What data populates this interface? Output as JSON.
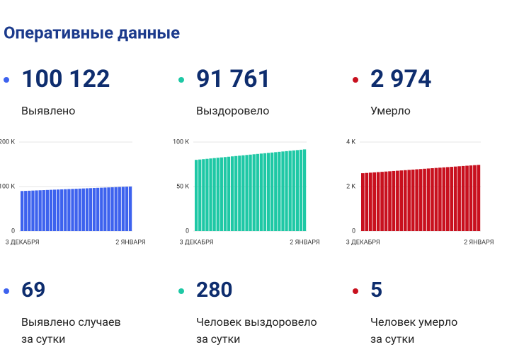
{
  "title": "Оперативные данные",
  "cards": [
    {
      "value": "100 122",
      "label": "Выявлено"
    },
    {
      "value": "91 761",
      "label": "Выздоровело"
    },
    {
      "value": "2 974",
      "label": "Умерло"
    }
  ],
  "chart_data": [
    {
      "type": "bar",
      "categories": [
        "3 ДЕКАБРЯ",
        null,
        null,
        null,
        null,
        null,
        null,
        null,
        null,
        null,
        null,
        null,
        null,
        null,
        null,
        null,
        null,
        null,
        null,
        null,
        null,
        null,
        null,
        null,
        null,
        null,
        null,
        null,
        null,
        null,
        "2 ЯНВАРЯ"
      ],
      "values": [
        90000,
        90337,
        90675,
        91012,
        91350,
        91687,
        92024,
        92362,
        92699,
        93037,
        93374,
        93711,
        94049,
        94386,
        94724,
        95061,
        95398,
        95736,
        96073,
        96411,
        96748,
        97085,
        97423,
        97760,
        98098,
        98435,
        98772,
        99110,
        99447,
        99785,
        100122
      ],
      "color": "#3d62ee",
      "ylim": [
        0,
        200000
      ],
      "yticks": [
        0,
        {
          "value": 100000,
          "label": "100 K"
        },
        {
          "value": 200000,
          "label": "200 K"
        }
      ],
      "grid": true
    },
    {
      "type": "bar",
      "categories": [
        "3 ДЕКАБРЯ",
        null,
        null,
        null,
        null,
        null,
        null,
        null,
        null,
        null,
        null,
        null,
        null,
        null,
        null,
        null,
        null,
        null,
        null,
        null,
        null,
        null,
        null,
        null,
        null,
        null,
        null,
        null,
        null,
        null,
        "2 ЯНВАРЯ"
      ],
      "values": [
        80000,
        80392,
        80784,
        81176,
        81568,
        81960,
        82352,
        82744,
        83136,
        83528,
        83920,
        84312,
        84704,
        85096,
        85488,
        85880,
        86272,
        86664,
        87056,
        87448,
        87840,
        88232,
        88624,
        89016,
        89408,
        89800,
        90192,
        90584,
        90976,
        91368,
        91761
      ],
      "color": "#1ec8a5",
      "ylim": [
        0,
        100000
      ],
      "yticks": [
        0,
        {
          "value": 50000,
          "label": "50 K"
        },
        {
          "value": 100000,
          "label": "100 K"
        }
      ],
      "grid": true
    },
    {
      "type": "bar",
      "categories": [
        "3 ДЕКАБРЯ",
        null,
        null,
        null,
        null,
        null,
        null,
        null,
        null,
        null,
        null,
        null,
        null,
        null,
        null,
        null,
        null,
        null,
        null,
        null,
        null,
        null,
        null,
        null,
        null,
        null,
        null,
        null,
        null,
        null,
        "2 ЯНВАРЯ"
      ],
      "values": [
        2600,
        2612,
        2625,
        2637,
        2650,
        2662,
        2675,
        2687,
        2700,
        2712,
        2725,
        2737,
        2750,
        2762,
        2775,
        2787,
        2800,
        2812,
        2825,
        2837,
        2850,
        2862,
        2874,
        2887,
        2899,
        2912,
        2924,
        2937,
        2949,
        2962,
        2974
      ],
      "color": "#c8101e",
      "ylim": [
        0,
        4000
      ],
      "yticks": [
        0,
        {
          "value": 2000,
          "label": "2 K"
        },
        {
          "value": 4000,
          "label": "4 K"
        }
      ],
      "grid": true
    }
  ],
  "daily": [
    {
      "value": "69",
      "label_lines": [
        "Выявлено случаев",
        "за сутки"
      ]
    },
    {
      "value": "280",
      "label_lines": [
        "Человек выздоровело",
        "за сутки"
      ]
    },
    {
      "value": "5",
      "label_lines": [
        "Человек умерло",
        "за сутки"
      ]
    }
  ]
}
